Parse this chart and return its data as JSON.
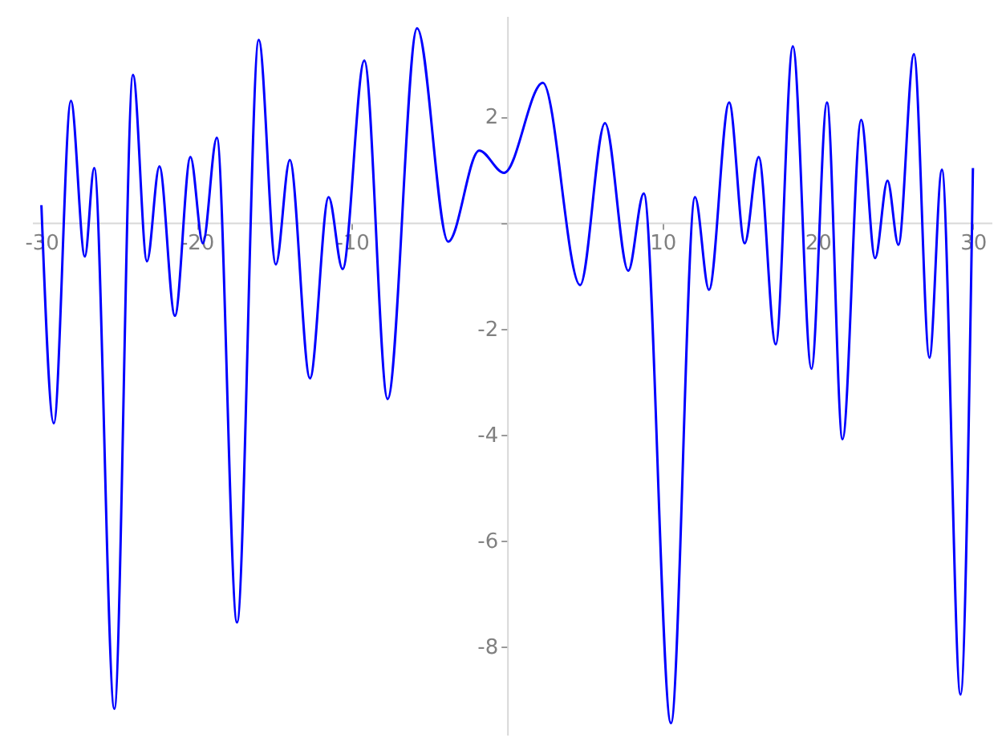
{
  "chart_data": {
    "type": "line",
    "xlim": [
      -30.6,
      31.2
    ],
    "ylim": [
      -9.67,
      3.9
    ],
    "xticks": [
      -30,
      -20,
      -10,
      {
        "value": 0,
        "label": null
      },
      10,
      20,
      30
    ],
    "yticks": [
      -8,
      -6,
      -4,
      -2,
      {
        "value": 0,
        "label": null
      },
      2
    ],
    "grid": false,
    "marker": "none",
    "line_style": "solid",
    "series": [
      {
        "color": "#0000ff",
        "x": [
          -30,
          -29.2,
          -28.1,
          -27.2,
          -26.6,
          -25.3,
          -24.1,
          -23.2,
          -22.4,
          -21.4,
          -20.4,
          -19.6,
          -18.7,
          -17.4,
          -16.0,
          -14.9,
          -14.0,
          -12.7,
          -11.5,
          -10.6,
          -9.2,
          -7.7,
          -5.8,
          -3.8,
          -1.8,
          -0.2,
          2.3,
          4.7,
          6.3,
          7.8,
          8.8,
          10.55,
          12.1,
          13.0,
          14.3,
          15.3,
          16.2,
          17.3,
          18.4,
          19.6,
          20.6,
          21.6,
          22.8,
          23.7,
          24.5,
          25.2,
          26.2,
          27.2,
          28.0,
          29.2,
          30
        ],
        "values": [
          0.33,
          -3.79,
          2.3,
          -0.64,
          1.03,
          -9.18,
          2.79,
          -0.73,
          1.06,
          -1.76,
          1.24,
          -0.39,
          1.6,
          -7.55,
          3.45,
          -0.79,
          1.18,
          -2.94,
          0.48,
          -0.88,
          3.06,
          -3.33,
          3.67,
          -0.36,
          1.36,
          0.94,
          2.64,
          -1.18,
          1.88,
          -0.91,
          0.55,
          -9.45,
          0.48,
          -1.27,
          2.27,
          -0.39,
          1.24,
          -2.3,
          3.33,
          -2.76,
          2.27,
          -4.09,
          1.94,
          -0.67,
          0.79,
          -0.42,
          3.18,
          -2.55,
          1.0,
          -8.91,
          1.03
        ]
      }
    ]
  }
}
